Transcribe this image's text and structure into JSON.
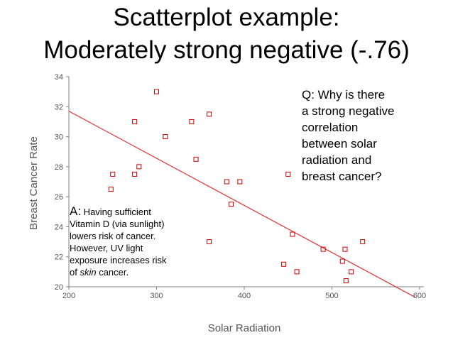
{
  "slide": {
    "title_line1": "Scatterplot example:",
    "title_line2": "Moderately strong negative (-.76)"
  },
  "question": {
    "lines": [
      "Q: Why is there",
      "a strong negative",
      "correlation",
      "between solar",
      "radiation and",
      "breast cancer?"
    ]
  },
  "answer": {
    "lead": "A:",
    "line1_rest": " Having sufficient",
    "line2": "Vitamin D (via sunlight)",
    "line3": "lowers risk of cancer.",
    "line4": "However, UV light",
    "line5": "exposure increases risk",
    "line6_pre": "of ",
    "line6_em": "skin",
    "line6_post": " cancer."
  },
  "colors": {
    "marker": "#cc0000",
    "trendline": "#e03030",
    "axis": "#808080",
    "text_muted": "#555555"
  },
  "chart_data": {
    "type": "scatter",
    "title": "Scatterplot example: Moderately strong negative (-.76)",
    "xlabel": "Solar Radiation",
    "ylabel": "Breast Cancer Rate",
    "xlim": [
      200,
      600
    ],
    "ylim": [
      20,
      34
    ],
    "xticks": [
      200,
      300,
      400,
      500,
      600
    ],
    "yticks": [
      20,
      22,
      24,
      26,
      28,
      30,
      32,
      34
    ],
    "correlation": -0.76,
    "points": [
      {
        "x": 300,
        "y": 33.0
      },
      {
        "x": 360,
        "y": 31.5
      },
      {
        "x": 275,
        "y": 31.0
      },
      {
        "x": 340,
        "y": 31.0
      },
      {
        "x": 310,
        "y": 30.0
      },
      {
        "x": 345,
        "y": 28.5
      },
      {
        "x": 280,
        "y": 28.0
      },
      {
        "x": 250,
        "y": 27.5
      },
      {
        "x": 275,
        "y": 27.5
      },
      {
        "x": 450,
        "y": 27.5
      },
      {
        "x": 380,
        "y": 27.0
      },
      {
        "x": 395,
        "y": 27.0
      },
      {
        "x": 248,
        "y": 26.5
      },
      {
        "x": 385,
        "y": 25.5
      },
      {
        "x": 455,
        "y": 23.5
      },
      {
        "x": 360,
        "y": 23.0
      },
      {
        "x": 535,
        "y": 23.0
      },
      {
        "x": 490,
        "y": 22.5
      },
      {
        "x": 515,
        "y": 22.5
      },
      {
        "x": 512,
        "y": 21.7
      },
      {
        "x": 445,
        "y": 21.5
      },
      {
        "x": 460,
        "y": 21.0
      },
      {
        "x": 522,
        "y": 21.0
      },
      {
        "x": 516,
        "y": 20.4
      }
    ],
    "trendline": {
      "x": [
        200,
        595
      ],
      "y": [
        31.7,
        19.3
      ]
    }
  }
}
